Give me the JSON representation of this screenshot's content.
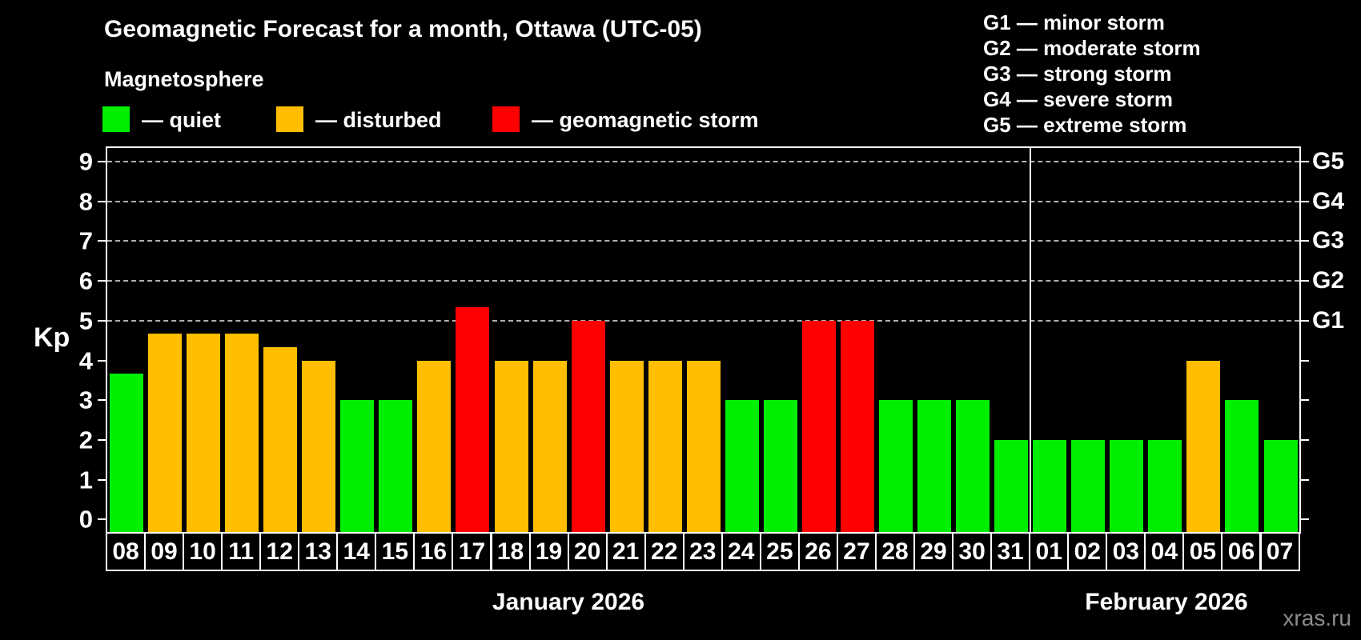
{
  "title": "Geomagnetic Forecast for a month, Ottawa (UTC-05)",
  "subtitle": "Magnetosphere",
  "legend": {
    "items": [
      {
        "key": "quiet",
        "label": "— quiet"
      },
      {
        "key": "disturbed",
        "label": "— disturbed"
      },
      {
        "key": "storm",
        "label": "— geomagnetic storm"
      }
    ]
  },
  "storm_scale_legend": [
    "G1 — minor storm",
    "G2 — moderate storm",
    "G3 — strong storm",
    "G4 — severe storm",
    "G5 — extreme storm"
  ],
  "watermark": "xras.ru",
  "colors": {
    "quiet": "#00ee00",
    "disturbed": "#ffbe00",
    "storm": "#ff0000",
    "background": "#000000",
    "axis": "#ffffff",
    "grid": "#b0b0b0",
    "watermark": "#8c8c8c"
  },
  "chart_data": {
    "type": "bar",
    "ylabel": "Kp",
    "ylim": [
      -0.37,
      9.37
    ],
    "y_ticks": [
      0,
      1,
      2,
      3,
      4,
      5,
      6,
      7,
      8,
      9
    ],
    "grid_values": [
      5,
      6,
      7,
      8,
      9
    ],
    "right_axis_labels": [
      {
        "label": "G1",
        "value": 5
      },
      {
        "label": "G2",
        "value": 6
      },
      {
        "label": "G3",
        "value": 7
      },
      {
        "label": "G4",
        "value": 8
      },
      {
        "label": "G5",
        "value": 9
      }
    ],
    "months": [
      {
        "label": "January 2026",
        "days": 24
      },
      {
        "label": "February 2026",
        "days": 7
      }
    ],
    "bars": [
      {
        "day": "08",
        "value": 3.67,
        "status": "quiet"
      },
      {
        "day": "09",
        "value": 4.67,
        "status": "disturbed"
      },
      {
        "day": "10",
        "value": 4.67,
        "status": "disturbed"
      },
      {
        "day": "11",
        "value": 4.67,
        "status": "disturbed"
      },
      {
        "day": "12",
        "value": 4.33,
        "status": "disturbed"
      },
      {
        "day": "13",
        "value": 4.0,
        "status": "disturbed"
      },
      {
        "day": "14",
        "value": 3.0,
        "status": "quiet"
      },
      {
        "day": "15",
        "value": 3.0,
        "status": "quiet"
      },
      {
        "day": "16",
        "value": 4.0,
        "status": "disturbed"
      },
      {
        "day": "17",
        "value": 5.33,
        "status": "storm"
      },
      {
        "day": "18",
        "value": 4.0,
        "status": "disturbed"
      },
      {
        "day": "19",
        "value": 4.0,
        "status": "disturbed"
      },
      {
        "day": "20",
        "value": 5.0,
        "status": "storm"
      },
      {
        "day": "21",
        "value": 4.0,
        "status": "disturbed"
      },
      {
        "day": "22",
        "value": 4.0,
        "status": "disturbed"
      },
      {
        "day": "23",
        "value": 4.0,
        "status": "disturbed"
      },
      {
        "day": "24",
        "value": 3.0,
        "status": "quiet"
      },
      {
        "day": "25",
        "value": 3.0,
        "status": "quiet"
      },
      {
        "day": "26",
        "value": 5.0,
        "status": "storm"
      },
      {
        "day": "27",
        "value": 5.0,
        "status": "storm"
      },
      {
        "day": "28",
        "value": 3.0,
        "status": "quiet"
      },
      {
        "day": "29",
        "value": 3.0,
        "status": "quiet"
      },
      {
        "day": "30",
        "value": 3.0,
        "status": "quiet"
      },
      {
        "day": "31",
        "value": 2.0,
        "status": "quiet"
      },
      {
        "day": "01",
        "value": 2.0,
        "status": "quiet"
      },
      {
        "day": "02",
        "value": 2.0,
        "status": "quiet"
      },
      {
        "day": "03",
        "value": 2.0,
        "status": "quiet"
      },
      {
        "day": "04",
        "value": 2.0,
        "status": "quiet"
      },
      {
        "day": "05",
        "value": 4.0,
        "status": "disturbed"
      },
      {
        "day": "06",
        "value": 3.0,
        "status": "quiet"
      },
      {
        "day": "07",
        "value": 2.0,
        "status": "quiet"
      }
    ]
  }
}
